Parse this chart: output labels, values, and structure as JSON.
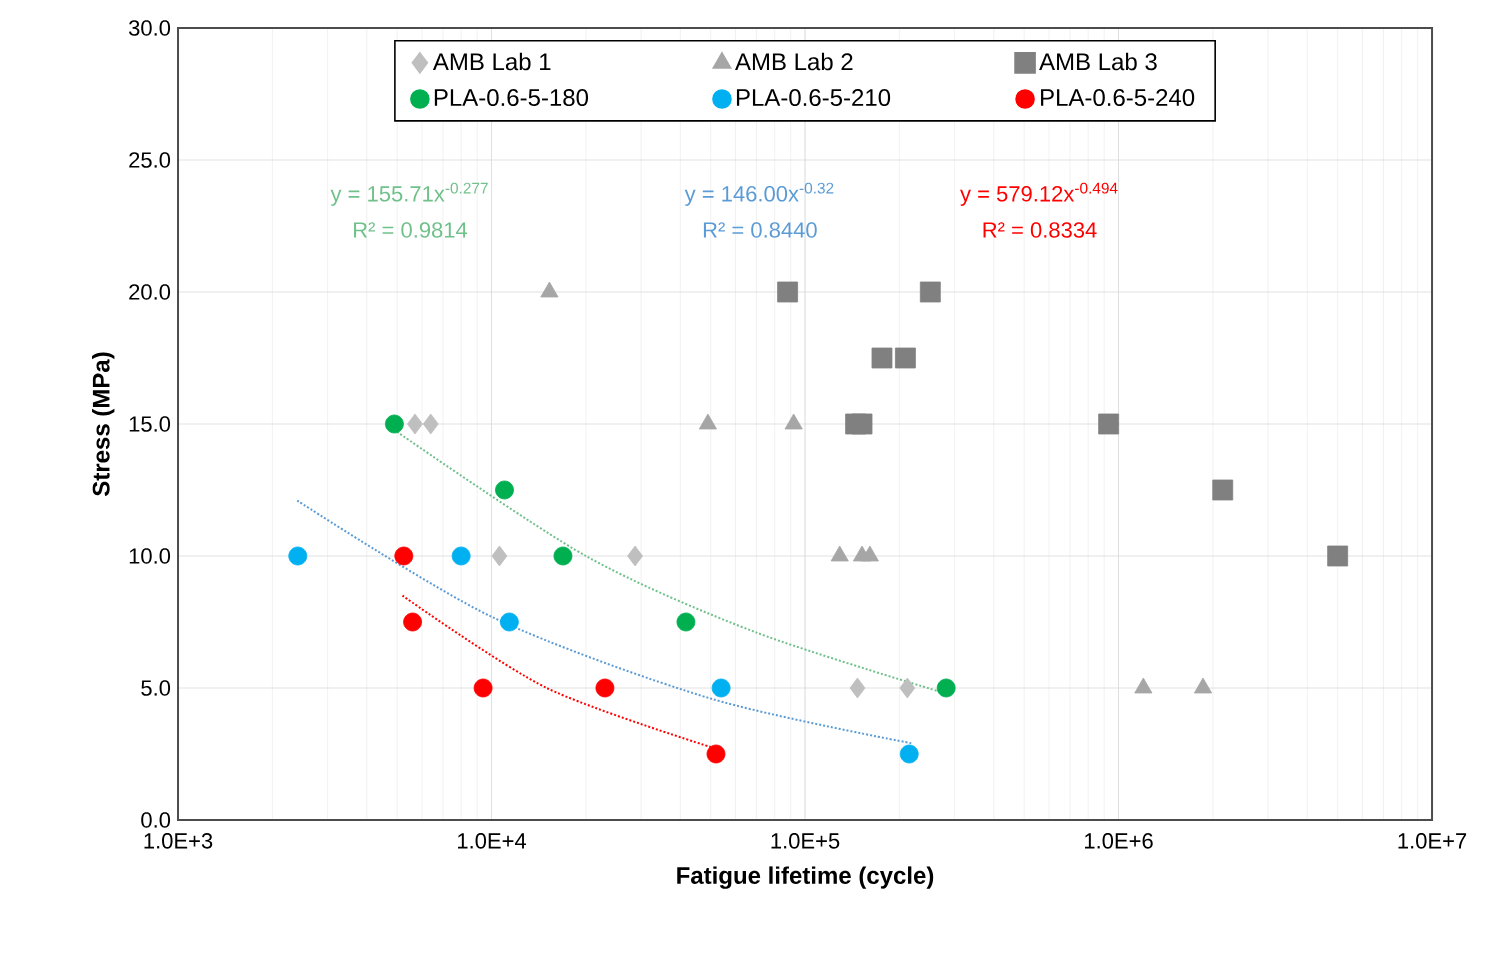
{
  "chart_data": {
    "type": "scatter",
    "xlabel": "Fatigue lifetime (cycle)",
    "ylabel": "Stress (MPa)",
    "log": "x",
    "grid": true,
    "legend": "top",
    "xlim": [
      1000,
      10000000
    ],
    "xticks": [
      {
        "value": 1000,
        "label": "1.0E+3"
      },
      {
        "value": 10000,
        "label": "1.0E+4"
      },
      {
        "value": 100000,
        "label": "1.0E+5"
      },
      {
        "value": 1000000,
        "label": "1.0E+6"
      },
      {
        "value": 10000000,
        "label": "1.0E+7"
      }
    ],
    "ylim": [
      0,
      30
    ],
    "yticks": [
      {
        "value": 0,
        "label": "0.0"
      },
      {
        "value": 5,
        "label": "5.0"
      },
      {
        "value": 10,
        "label": "10.0"
      },
      {
        "value": 15,
        "label": "15.0"
      },
      {
        "value": 20,
        "label": "20.0"
      },
      {
        "value": 25,
        "label": "25.0"
      },
      {
        "value": 30,
        "label": "30.0"
      }
    ],
    "series": [
      {
        "name": "AMB Lab 1",
        "color": "#bfbfbf",
        "marker": "diamond",
        "x": [
          5700,
          6400,
          10600,
          28700,
          147000,
          212000
        ],
        "values": [
          15,
          15,
          10,
          10,
          5,
          5
        ]
      },
      {
        "name": "AMB Lab 2",
        "color": "#a6a6a6",
        "marker": "triangle",
        "x": [
          15300,
          49000,
          92000,
          129000,
          152000,
          161000,
          1200000,
          1860000
        ],
        "values": [
          20,
          15,
          15,
          10,
          10,
          10,
          5,
          5
        ]
      },
      {
        "name": "AMB Lab 3",
        "color": "#808080",
        "marker": "square",
        "x": [
          88000,
          251000,
          176000,
          209000,
          145000,
          152000,
          930000,
          2150000,
          5000000
        ],
        "values": [
          20,
          20,
          17.5,
          17.5,
          15,
          15,
          15,
          12.5,
          10
        ]
      },
      {
        "name": "PLA-0.6-5-180",
        "color": "#00b050",
        "marker": "circle",
        "x": [
          4900,
          11000,
          16900,
          41700,
          282000
        ],
        "values": [
          15,
          12.5,
          10,
          7.5,
          5
        ]
      },
      {
        "name": "PLA-0.6-5-210",
        "color": "#00b0f0",
        "marker": "circle",
        "x": [
          2410,
          8000,
          11400,
          54000,
          215000
        ],
        "values": [
          10,
          10,
          7.5,
          5,
          2.5
        ]
      },
      {
        "name": "PLA-0.6-5-240",
        "color": "#ff0000",
        "marker": "circle",
        "x": [
          5250,
          5600,
          9400,
          23000,
          52000
        ],
        "values": [
          10,
          7.5,
          5,
          5,
          2.5
        ]
      },
      {
        "type": "line",
        "color": "#70c08a",
        "marker": "none",
        "line_style": "dotted",
        "x": [
          5000,
          20000,
          70000,
          280000
        ],
        "values": [
          14.7,
          10.0,
          7.1,
          4.8
        ]
      },
      {
        "type": "line",
        "color": "#5b9bd5",
        "marker": "none",
        "line_style": "dotted",
        "x": [
          2400,
          10000,
          50000,
          220000
        ],
        "values": [
          12.1,
          7.7,
          4.6,
          2.9
        ]
      },
      {
        "type": "line",
        "color": "#ff0000",
        "marker": "none",
        "line_style": "dotted",
        "x": [
          5200,
          15000,
          52000
        ],
        "values": [
          8.5,
          5.0,
          2.7
        ]
      }
    ],
    "annotations": [
      "y = 155.71x$^{-0.277}$",
      "R² = 0.9814",
      "y = 146.00x$^{-0.32}$",
      "R² = 0.8440",
      "y = 579.12x$^{-0.494}$",
      "R² = 0.8334"
    ]
  }
}
